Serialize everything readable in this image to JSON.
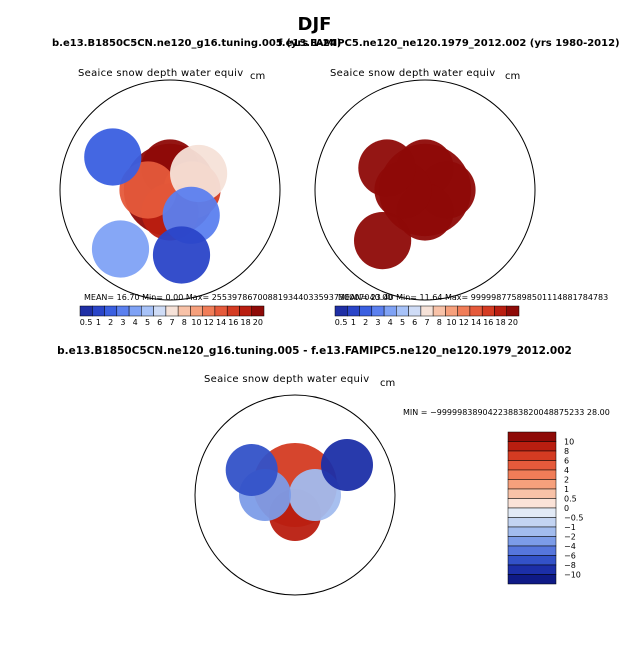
{
  "chart_data": {
    "title": "DJF",
    "type": "heatmap",
    "panels": [
      {
        "case": "b.e13.B1850C5CN.ne120_g16.tuning.005 (yrs 1-24)",
        "title": "Seaice snow depth water equiv",
        "units": "cm",
        "stats": "MEAN=   16.70   Min=    0.00   Max=  255397867008819344033593730007040.00",
        "colorbar_levels": [
          "0.5",
          "1",
          "2",
          "3",
          "4",
          "5",
          "6",
          "7",
          "8",
          "10",
          "12",
          "14",
          "16",
          "18",
          "20"
        ],
        "colorbar_colors": [
          "#1f2fa5",
          "#2a45c8",
          "#3a5fe0",
          "#5b80ef",
          "#7fa2f5",
          "#a7c2f8",
          "#cfdcf6",
          "#f6e2d8",
          "#f8c2a8",
          "#f6a07c",
          "#f07d58",
          "#e55a3b",
          "#d43b22",
          "#b91e10",
          "#8e0a07"
        ],
        "map_cells": [
          {
            "lat": 90,
            "lon": 0,
            "value": 20
          },
          {
            "lat": 80,
            "lon": 0,
            "value": 18
          },
          {
            "lat": 80,
            "lon": 90,
            "value": 14
          },
          {
            "lat": 80,
            "lon": 180,
            "value": 16
          },
          {
            "lat": 80,
            "lon": 270,
            "value": 12
          },
          {
            "lat": 75,
            "lon": 60,
            "value": 6
          },
          {
            "lat": 75,
            "lon": 140,
            "value": 2
          },
          {
            "lat": 60,
            "lon": 300,
            "value": 1
          },
          {
            "lat": 55,
            "lon": 220,
            "value": 3
          },
          {
            "lat": 60,
            "lon": 170,
            "value": 0.5
          }
        ]
      },
      {
        "case": "f.e13.FAMIPC5.ne120_ne120.1979_2012.002 (yrs 1980-2012)",
        "title": "Seaice snow depth water equiv",
        "units": "cm",
        "stats": "MEAN=   23.40   Min=   11.64   Max=  999998775898501114881784783",
        "colorbar_levels": [
          "0.5",
          "1",
          "2",
          "3",
          "4",
          "5",
          "6",
          "7",
          "8",
          "10",
          "12",
          "14",
          "16",
          "18",
          "20"
        ],
        "colorbar_colors": [
          "#1f2fa5",
          "#2a45c8",
          "#3a5fe0",
          "#5b80ef",
          "#7fa2f5",
          "#a7c2f8",
          "#cfdcf6",
          "#f6e2d8",
          "#f8c2a8",
          "#f6a07c",
          "#f07d58",
          "#e55a3b",
          "#d43b22",
          "#b91e10",
          "#8e0a07"
        ],
        "map_cells": [
          {
            "lat": 90,
            "lon": 0,
            "value": 20
          },
          {
            "lat": 80,
            "lon": 0,
            "value": 20
          },
          {
            "lat": 80,
            "lon": 90,
            "value": 20
          },
          {
            "lat": 80,
            "lon": 180,
            "value": 20
          },
          {
            "lat": 80,
            "lon": 270,
            "value": 20
          },
          {
            "lat": 70,
            "lon": 300,
            "value": 20
          },
          {
            "lat": 60,
            "lon": 220,
            "value": 20
          }
        ]
      },
      {
        "case": "b.e13.B1850C5CN.ne120_g16.tuning.005 - f.e13.FAMIPC5.ne120_ne120.1979_2012.002",
        "title": "Seaice snow depth water equiv",
        "units": "cm",
        "stats": "MIN = −99999838904223883820048875233 28.00",
        "colorbar_levels": [
          "10",
          "8",
          "6",
          "4",
          "2",
          "1",
          "0.5",
          "0",
          "−0.5",
          "−1",
          "−2",
          "−4",
          "−6",
          "−8",
          "−10"
        ],
        "colorbar_colors": [
          "#8e0a07",
          "#b91e10",
          "#d43b22",
          "#e55a3b",
          "#f07d58",
          "#f6a07c",
          "#f8c2a8",
          "#fbe3d8",
          "#e2eaf6",
          "#c3d4f2",
          "#a2bcee",
          "#7c9ce8",
          "#5676dc",
          "#3352c8",
          "#1c2fa8",
          "#0f1a86"
        ],
        "map_cells": [
          {
            "lat": 85,
            "lon": 0,
            "value": 6
          },
          {
            "lat": 80,
            "lon": 180,
            "value": 8
          },
          {
            "lat": 80,
            "lon": 90,
            "value": -2
          },
          {
            "lat": 75,
            "lon": 270,
            "value": -4
          },
          {
            "lat": 65,
            "lon": 300,
            "value": -8
          },
          {
            "lat": 60,
            "lon": 60,
            "value": -10
          }
        ]
      }
    ]
  }
}
